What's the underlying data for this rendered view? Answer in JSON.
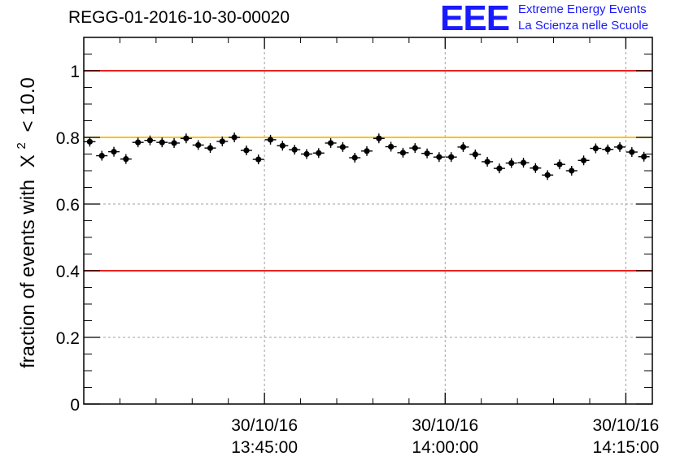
{
  "chart_data": {
    "type": "scatter",
    "title": "REGG-01-2016-10-30-00020",
    "ylabel": "fraction of events with",
    "ylabel_symbol": "X",
    "ylabel_exponent": "2",
    "ylabel_threshold": "< 10.0",
    "xlabel": "",
    "xlim_minutes": [
      0,
      47.2
    ],
    "ylim": [
      0,
      1.1
    ],
    "x_ticks": [
      {
        "minute": 15,
        "date": "30/10/16",
        "time": "13:45:00"
      },
      {
        "minute": 30,
        "date": "30/10/16",
        "time": "14:00:00"
      },
      {
        "minute": 45,
        "date": "30/10/16",
        "time": "14:15:00"
      }
    ],
    "y_ticks": [
      {
        "value": 0,
        "label": "0"
      },
      {
        "value": 0.2,
        "label": "0.2"
      },
      {
        "value": 0.4,
        "label": "0.4"
      },
      {
        "value": 0.6,
        "label": "0.6"
      },
      {
        "value": 0.8,
        "label": "0.8"
      },
      {
        "value": 1,
        "label": "1"
      }
    ],
    "grid": true,
    "reference_lines": [
      {
        "y": 1.0,
        "color": "#e8231f"
      },
      {
        "y": 0.8,
        "color": "#ffc20e"
      },
      {
        "y": 0.4,
        "color": "#e8231f"
      }
    ],
    "point_color": "#000000",
    "series": [
      {
        "x": [
          0.5,
          1.5,
          2.5,
          3.5,
          4.5,
          5.5,
          6.5,
          7.5,
          8.5,
          9.5,
          10.5,
          11.5,
          12.5,
          13.5,
          14.5,
          15.5,
          16.5,
          17.5,
          18.5,
          19.5,
          20.5,
          21.5,
          22.5,
          23.5,
          24.5,
          25.5,
          26.5,
          27.5,
          28.5,
          29.5,
          30.5,
          31.5,
          32.5,
          33.5,
          34.5,
          35.5,
          36.5,
          37.5,
          38.5,
          39.5,
          40.5,
          41.5,
          42.5,
          43.5,
          44.5,
          45.5,
          46.5
        ],
        "y": [
          0.787,
          0.745,
          0.757,
          0.735,
          0.785,
          0.791,
          0.785,
          0.783,
          0.797,
          0.777,
          0.768,
          0.788,
          0.8,
          0.761,
          0.734,
          0.793,
          0.775,
          0.763,
          0.75,
          0.753,
          0.783,
          0.771,
          0.739,
          0.759,
          0.797,
          0.772,
          0.754,
          0.768,
          0.752,
          0.741,
          0.741,
          0.771,
          0.749,
          0.727,
          0.707,
          0.723,
          0.724,
          0.708,
          0.687,
          0.719,
          0.7,
          0.731,
          0.767,
          0.764,
          0.771,
          0.756,
          0.742
        ]
      }
    ]
  },
  "logo": {
    "mark": "EEE",
    "line1": "Extreme Energy Events",
    "line2": "La Scienza nelle Scuole",
    "color": "#1a1aff"
  }
}
